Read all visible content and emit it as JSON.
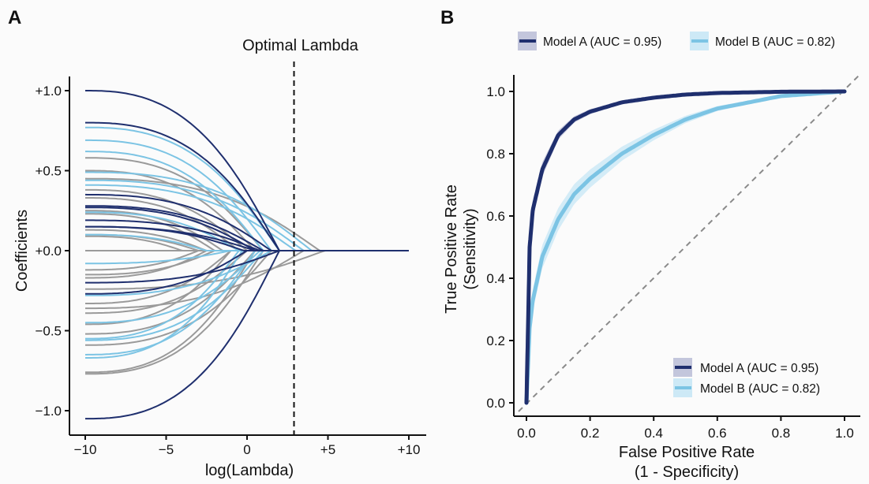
{
  "colors": {
    "dark": "#1f2f6e",
    "light": "#7cc4e4",
    "gray": "#9a9a9a",
    "band_dark": "#c3c6dc",
    "band_light": "#cde9f6",
    "diagonal": "#8a8a8a"
  },
  "chart_data": [
    {
      "panel_label": "A",
      "type": "line",
      "xlabel": "log(Lambda)",
      "ylabel": "Coefficients",
      "xlim": [
        -10,
        10
      ],
      "ylim": [
        -1.1,
        1.1
      ],
      "x_ticks": [
        -10,
        -5,
        0,
        5,
        10
      ],
      "x_tick_labels": [
        "−10",
        "−5",
        "0",
        "+5",
        "+10"
      ],
      "y_ticks": [
        -1,
        -0.5,
        0,
        0.5,
        1
      ],
      "y_tick_labels": [
        "−1.0",
        "−0.5",
        "+0.0",
        "+0.5",
        "+1.0"
      ],
      "grid": false,
      "vline": {
        "x": 3,
        "label": "Optimal Lambda",
        "style": "dashed"
      },
      "path_note_fields": [
        "coef_at_log_lambda_-10",
        "log_lambda_where_zero",
        "color_group"
      ],
      "paths": [
        [
          1.0,
          2.0,
          "dark"
        ],
        [
          0.8,
          2.0,
          "dark"
        ],
        [
          0.35,
          1.5,
          "dark"
        ],
        [
          0.28,
          1.0,
          "dark"
        ],
        [
          0.27,
          0.5,
          "dark"
        ],
        [
          0.19,
          0.8,
          "dark"
        ],
        [
          0.15,
          -0.2,
          "dark"
        ],
        [
          0.15,
          0.5,
          "dark"
        ],
        [
          -0.2,
          2.0,
          "dark"
        ],
        [
          -0.27,
          0.0,
          "dark"
        ],
        [
          -1.05,
          2.0,
          "dark"
        ],
        [
          0.77,
          2.0,
          "light"
        ],
        [
          0.69,
          1.5,
          "light"
        ],
        [
          0.62,
          1.0,
          "light"
        ],
        [
          0.49,
          4.0,
          "light"
        ],
        [
          0.44,
          3.5,
          "light"
        ],
        [
          0.41,
          3.0,
          "light"
        ],
        [
          0.24,
          -0.5,
          "light"
        ],
        [
          0.1,
          -2.5,
          "light"
        ],
        [
          -0.08,
          -1.0,
          "light"
        ],
        [
          -0.45,
          0.8,
          "light"
        ],
        [
          -0.56,
          1.0,
          "light"
        ],
        [
          -0.65,
          0.5,
          "light"
        ],
        [
          -0.67,
          -0.3,
          "light"
        ],
        [
          -0.55,
          -0.5,
          "light"
        ],
        [
          -0.28,
          1.5,
          "light"
        ],
        [
          0.58,
          1.0,
          "gray"
        ],
        [
          0.5,
          0.5,
          "gray"
        ],
        [
          0.45,
          4.5,
          "gray"
        ],
        [
          0.38,
          0.0,
          "gray"
        ],
        [
          0.33,
          -0.5,
          "gray"
        ],
        [
          0.25,
          -1.5,
          "gray"
        ],
        [
          0.23,
          -2.0,
          "gray"
        ],
        [
          0.13,
          -2.5,
          "gray"
        ],
        [
          0.1,
          -3.0,
          "gray"
        ],
        [
          0.09,
          -4.0,
          "gray"
        ],
        [
          0.0,
          -10.0,
          "gray"
        ],
        [
          -0.12,
          -3.0,
          "gray"
        ],
        [
          -0.15,
          -2.0,
          "gray"
        ],
        [
          -0.17,
          -2.5,
          "gray"
        ],
        [
          -0.24,
          4.8,
          "gray"
        ],
        [
          -0.33,
          -1.0,
          "gray"
        ],
        [
          -0.36,
          3.5,
          "gray"
        ],
        [
          -0.39,
          0.0,
          "gray"
        ],
        [
          -0.46,
          -1.0,
          "gray"
        ],
        [
          -0.52,
          0.5,
          "gray"
        ],
        [
          -0.59,
          1.5,
          "gray"
        ],
        [
          -0.76,
          0.5,
          "gray"
        ],
        [
          -0.77,
          1.0,
          "gray"
        ]
      ]
    },
    {
      "panel_label": "B",
      "type": "line",
      "xlabel": "False Positive Rate",
      "xlabel2": "(1 - Specificity)",
      "ylabel": "True Positive Rate",
      "ylabel2": "(Sensitivity)",
      "xlim": [
        0,
        1
      ],
      "ylim": [
        0,
        1
      ],
      "x_ticks": [
        0,
        0.2,
        0.4,
        0.6,
        0.8,
        1.0
      ],
      "x_tick_labels": [
        "0.0",
        "0.2",
        "0.4",
        "0.6",
        "0.8",
        "1.0"
      ],
      "y_ticks": [
        0,
        0.2,
        0.4,
        0.6,
        0.8,
        1.0
      ],
      "y_tick_labels": [
        "0.0",
        "0.2",
        "0.4",
        "0.6",
        "0.8",
        "1.0"
      ],
      "grid": false,
      "diagonal": true,
      "legend_placement": [
        "top",
        "bottom-right"
      ],
      "series": [
        {
          "name": "Model A (AUC = 0.95)",
          "auc": 0.95,
          "color": "dark",
          "ci_halfwidth": 0.03,
          "x": [
            0,
            0.01,
            0.02,
            0.05,
            0.1,
            0.15,
            0.2,
            0.3,
            0.4,
            0.5,
            0.6,
            0.8,
            1.0
          ],
          "y": [
            0,
            0.5,
            0.62,
            0.75,
            0.86,
            0.91,
            0.935,
            0.965,
            0.98,
            0.99,
            0.995,
            0.999,
            1.0
          ]
        },
        {
          "name": "Model B (AUC = 0.82)",
          "auc": 0.82,
          "color": "light",
          "ci_halfwidth": 0.035,
          "x": [
            0,
            0.01,
            0.02,
            0.05,
            0.1,
            0.15,
            0.2,
            0.3,
            0.4,
            0.5,
            0.6,
            0.8,
            1.0
          ],
          "y": [
            0,
            0.24,
            0.33,
            0.47,
            0.59,
            0.67,
            0.72,
            0.8,
            0.86,
            0.91,
            0.945,
            0.985,
            1.0
          ]
        }
      ]
    }
  ]
}
